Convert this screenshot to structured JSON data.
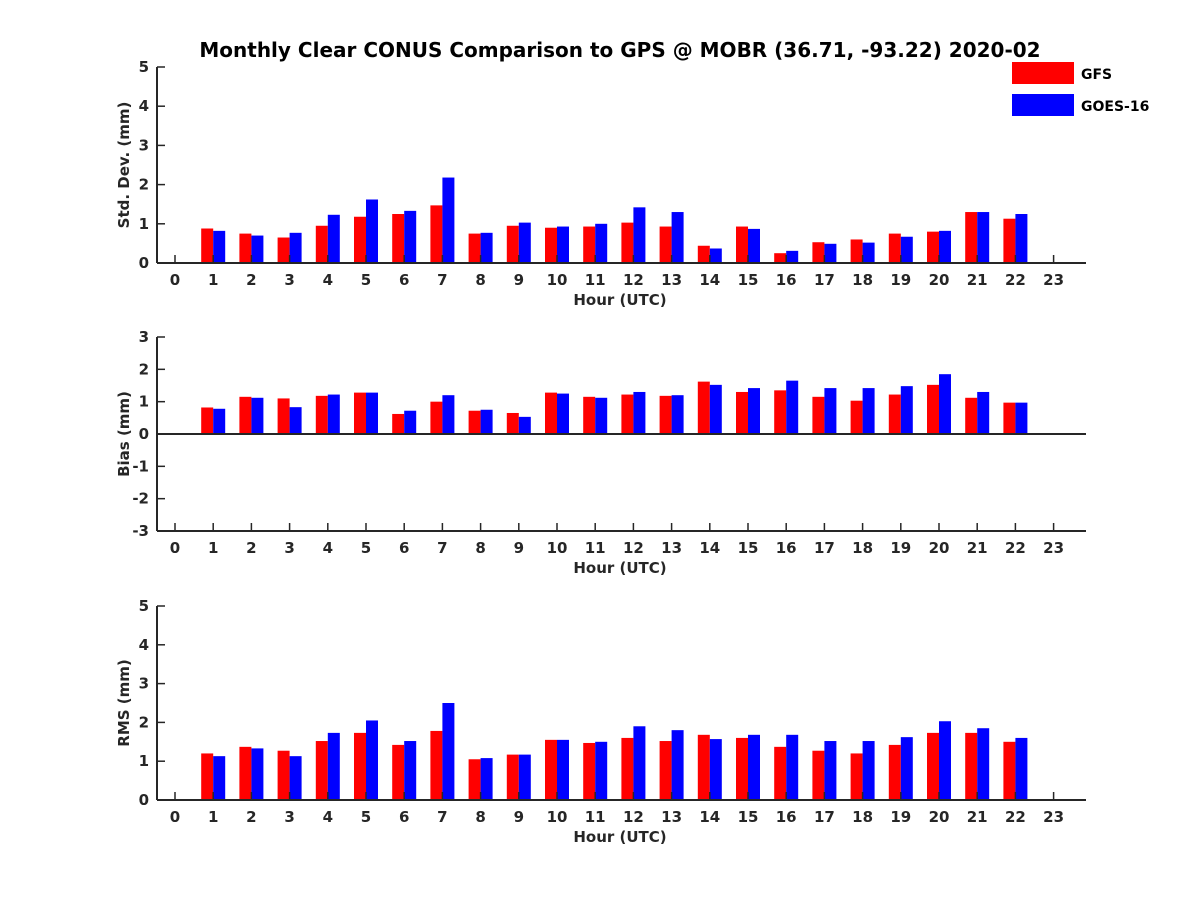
{
  "title": "Monthly Clear CONUS Comparison to GPS @ MOBR (36.71, -93.22) 2020-02",
  "legend": [
    {
      "name": "GFS",
      "color": "#ff0000"
    },
    {
      "name": "GOES-16",
      "color": "#0000ff"
    }
  ],
  "chart_data": [
    {
      "type": "bar",
      "xlabel": "Hour (UTC)",
      "ylabel": "Std. Dev. (mm)",
      "ylim": [
        0,
        5
      ],
      "yticks": [
        0,
        1,
        2,
        3,
        4,
        5
      ],
      "categories": [
        "0",
        "1",
        "2",
        "3",
        "4",
        "5",
        "6",
        "7",
        "8",
        "9",
        "10",
        "11",
        "12",
        "13",
        "14",
        "15",
        "16",
        "17",
        "18",
        "19",
        "20",
        "21",
        "22",
        "23"
      ],
      "series": [
        {
          "name": "GFS",
          "color": "#ff0000",
          "values": [
            null,
            0.88,
            0.75,
            0.65,
            0.95,
            1.18,
            1.25,
            1.47,
            0.75,
            0.95,
            0.9,
            0.93,
            1.03,
            0.93,
            0.44,
            0.93,
            0.25,
            0.53,
            0.6,
            0.75,
            0.8,
            1.3,
            1.13,
            null
          ]
        },
        {
          "name": "GOES-16",
          "color": "#0000ff",
          "values": [
            null,
            0.82,
            0.7,
            0.77,
            1.23,
            1.62,
            1.33,
            2.18,
            0.77,
            1.03,
            0.93,
            1.0,
            1.42,
            1.3,
            0.37,
            0.87,
            0.31,
            0.49,
            0.52,
            0.67,
            0.82,
            1.3,
            1.25,
            null
          ]
        }
      ]
    },
    {
      "type": "bar",
      "xlabel": "Hour (UTC)",
      "ylabel": "Bias (mm)",
      "ylim": [
        -3,
        3
      ],
      "yticks": [
        -3,
        -2,
        -1,
        0,
        1,
        2,
        3
      ],
      "categories": [
        "0",
        "1",
        "2",
        "3",
        "4",
        "5",
        "6",
        "7",
        "8",
        "9",
        "10",
        "11",
        "12",
        "13",
        "14",
        "15",
        "16",
        "17",
        "18",
        "19",
        "20",
        "21",
        "22",
        "23"
      ],
      "series": [
        {
          "name": "GFS",
          "color": "#ff0000",
          "values": [
            null,
            0.82,
            1.15,
            1.1,
            1.18,
            1.28,
            0.62,
            1.0,
            0.72,
            0.65,
            1.28,
            1.15,
            1.22,
            1.18,
            1.62,
            1.3,
            1.35,
            1.15,
            1.03,
            1.22,
            1.52,
            1.12,
            0.97,
            null
          ]
        },
        {
          "name": "GOES-16",
          "color": "#0000ff",
          "values": [
            null,
            0.78,
            1.12,
            0.83,
            1.22,
            1.28,
            0.72,
            1.2,
            0.75,
            0.53,
            1.25,
            1.12,
            1.3,
            1.2,
            1.52,
            1.42,
            1.65,
            1.42,
            1.42,
            1.48,
            1.85,
            1.3,
            0.97,
            null
          ]
        }
      ]
    },
    {
      "type": "bar",
      "xlabel": "Hour (UTC)",
      "ylabel": "RMS (mm)",
      "ylim": [
        0,
        5
      ],
      "yticks": [
        0,
        1,
        2,
        3,
        4,
        5
      ],
      "categories": [
        "0",
        "1",
        "2",
        "3",
        "4",
        "5",
        "6",
        "7",
        "8",
        "9",
        "10",
        "11",
        "12",
        "13",
        "14",
        "15",
        "16",
        "17",
        "18",
        "19",
        "20",
        "21",
        "22",
        "23"
      ],
      "series": [
        {
          "name": "GFS",
          "color": "#ff0000",
          "values": [
            null,
            1.2,
            1.37,
            1.27,
            1.52,
            1.73,
            1.42,
            1.78,
            1.05,
            1.17,
            1.55,
            1.47,
            1.6,
            1.52,
            1.68,
            1.6,
            1.37,
            1.27,
            1.2,
            1.42,
            1.73,
            1.73,
            1.5,
            null
          ]
        },
        {
          "name": "GOES-16",
          "color": "#0000ff",
          "values": [
            null,
            1.13,
            1.33,
            1.13,
            1.73,
            2.05,
            1.52,
            2.5,
            1.08,
            1.17,
            1.55,
            1.5,
            1.9,
            1.8,
            1.57,
            1.68,
            1.68,
            1.52,
            1.52,
            1.62,
            2.03,
            1.85,
            1.6,
            null
          ]
        }
      ]
    }
  ]
}
